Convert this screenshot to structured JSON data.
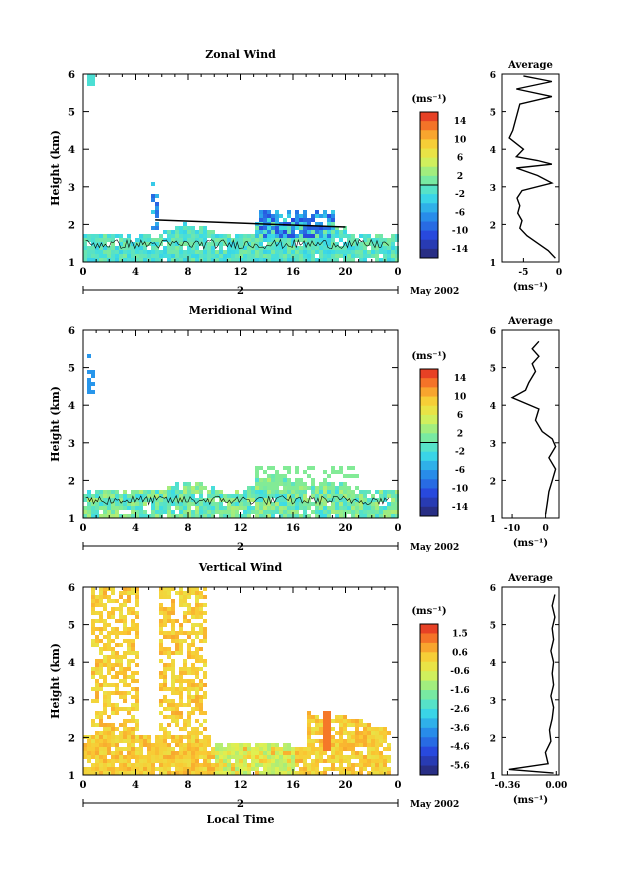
{
  "page": {
    "date_label": "May 2002",
    "day_label": "2",
    "time_ticks": [
      "0",
      "4",
      "8",
      "12",
      "16",
      "20",
      "0"
    ],
    "x_axis_label": "Local Time",
    "y_axis_label": "Height (km)",
    "height_ticks": [
      "1",
      "2",
      "3",
      "4",
      "5",
      "6"
    ],
    "unit_label": "(ms⁻¹)",
    "average_title": "Average"
  },
  "chart_data": [
    {
      "type": "heatmap",
      "title": "Zonal Wind",
      "xlabel": "",
      "ylabel": "Height (km)",
      "xlim": [
        0,
        24
      ],
      "ylim": [
        1,
        6
      ],
      "colorbar": {
        "label": "(ms⁻¹)",
        "range": [
          -15,
          15
        ],
        "ticks": [
          "14",
          "10",
          "6",
          "2",
          "-2",
          "-6",
          "-10",
          "-14"
        ]
      },
      "profile": {
        "title": "Average",
        "xlabel": "(ms⁻¹)",
        "xticks": [
          "-5",
          "0"
        ],
        "xlim": [
          -8,
          0
        ],
        "height": [
          1.1,
          1.3,
          1.5,
          1.7,
          1.9,
          2.1,
          2.3,
          2.5,
          2.7,
          2.9,
          3.1,
          3.3,
          3.5,
          3.6,
          3.7,
          3.8,
          4.0,
          4.3,
          4.5,
          5.2,
          5.4,
          5.6,
          5.8,
          5.95
        ],
        "value": [
          -0.5,
          -1.5,
          -3,
          -4.5,
          -5.5,
          -5.2,
          -5.8,
          -5.5,
          -5.9,
          -5.2,
          -1,
          -3,
          -6,
          -1,
          -3,
          -6,
          -5,
          -7,
          -6.5,
          -5.5,
          -1,
          -6,
          -1,
          -5
        ]
      },
      "fit_line": {
        "x": [
          5.5,
          20
        ],
        "height": [
          2.12,
          1.93
        ]
      }
    },
    {
      "type": "heatmap",
      "title": "Meridional Wind",
      "xlabel": "",
      "ylabel": "Height (km)",
      "xlim": [
        0,
        24
      ],
      "ylim": [
        1,
        6
      ],
      "colorbar": {
        "label": "(ms⁻¹)",
        "range": [
          -15,
          15
        ],
        "ticks": [
          "14",
          "10",
          "6",
          "2",
          "-2",
          "-6",
          "-10",
          "-14"
        ]
      },
      "profile": {
        "title": "Average",
        "xlabel": "(ms⁻¹)",
        "xticks": [
          "-10",
          "0"
        ],
        "xlim": [
          -13,
          4
        ],
        "height": [
          1.1,
          1.4,
          1.7,
          2.0,
          2.3,
          2.6,
          2.9,
          3.1,
          3.3,
          3.6,
          3.9,
          4.2,
          4.4,
          4.6,
          4.9,
          5.1,
          5.3,
          5.5,
          5.7
        ],
        "value": [
          0,
          0.5,
          1,
          2,
          3,
          1,
          3,
          2,
          -1,
          -3,
          -2,
          -10,
          -6,
          -5,
          -3,
          -4,
          -2,
          -4,
          -2
        ]
      }
    },
    {
      "type": "heatmap",
      "title": "Vertical Wind",
      "xlabel": "Local Time",
      "ylabel": "Height (km)",
      "xlim": [
        0,
        24
      ],
      "ylim": [
        1,
        6
      ],
      "colorbar": {
        "label": "(ms⁻¹)",
        "range": [
          -6,
          2
        ],
        "ticks": [
          "1.5",
          "0.6",
          "-0.6",
          "-1.6",
          "-2.6",
          "-3.6",
          "-4.6",
          "-5.6"
        ]
      },
      "profile": {
        "title": "Average",
        "xlabel": "(ms⁻¹)",
        "xticks": [
          "-0.36",
          "0.00"
        ],
        "xlim": [
          -0.4,
          0.02
        ],
        "height": [
          1.05,
          1.15,
          1.3,
          1.6,
          1.9,
          2.2,
          2.5,
          2.8,
          3.1,
          3.4,
          3.7,
          4.0,
          4.3,
          4.6,
          4.9,
          5.2,
          5.5,
          5.8
        ],
        "value": [
          -0.02,
          -0.35,
          -0.06,
          -0.08,
          -0.04,
          -0.05,
          -0.03,
          -0.02,
          -0.04,
          -0.02,
          -0.03,
          -0.02,
          -0.04,
          -0.02,
          -0.03,
          -0.01,
          -0.03,
          -0.01
        ]
      }
    }
  ]
}
